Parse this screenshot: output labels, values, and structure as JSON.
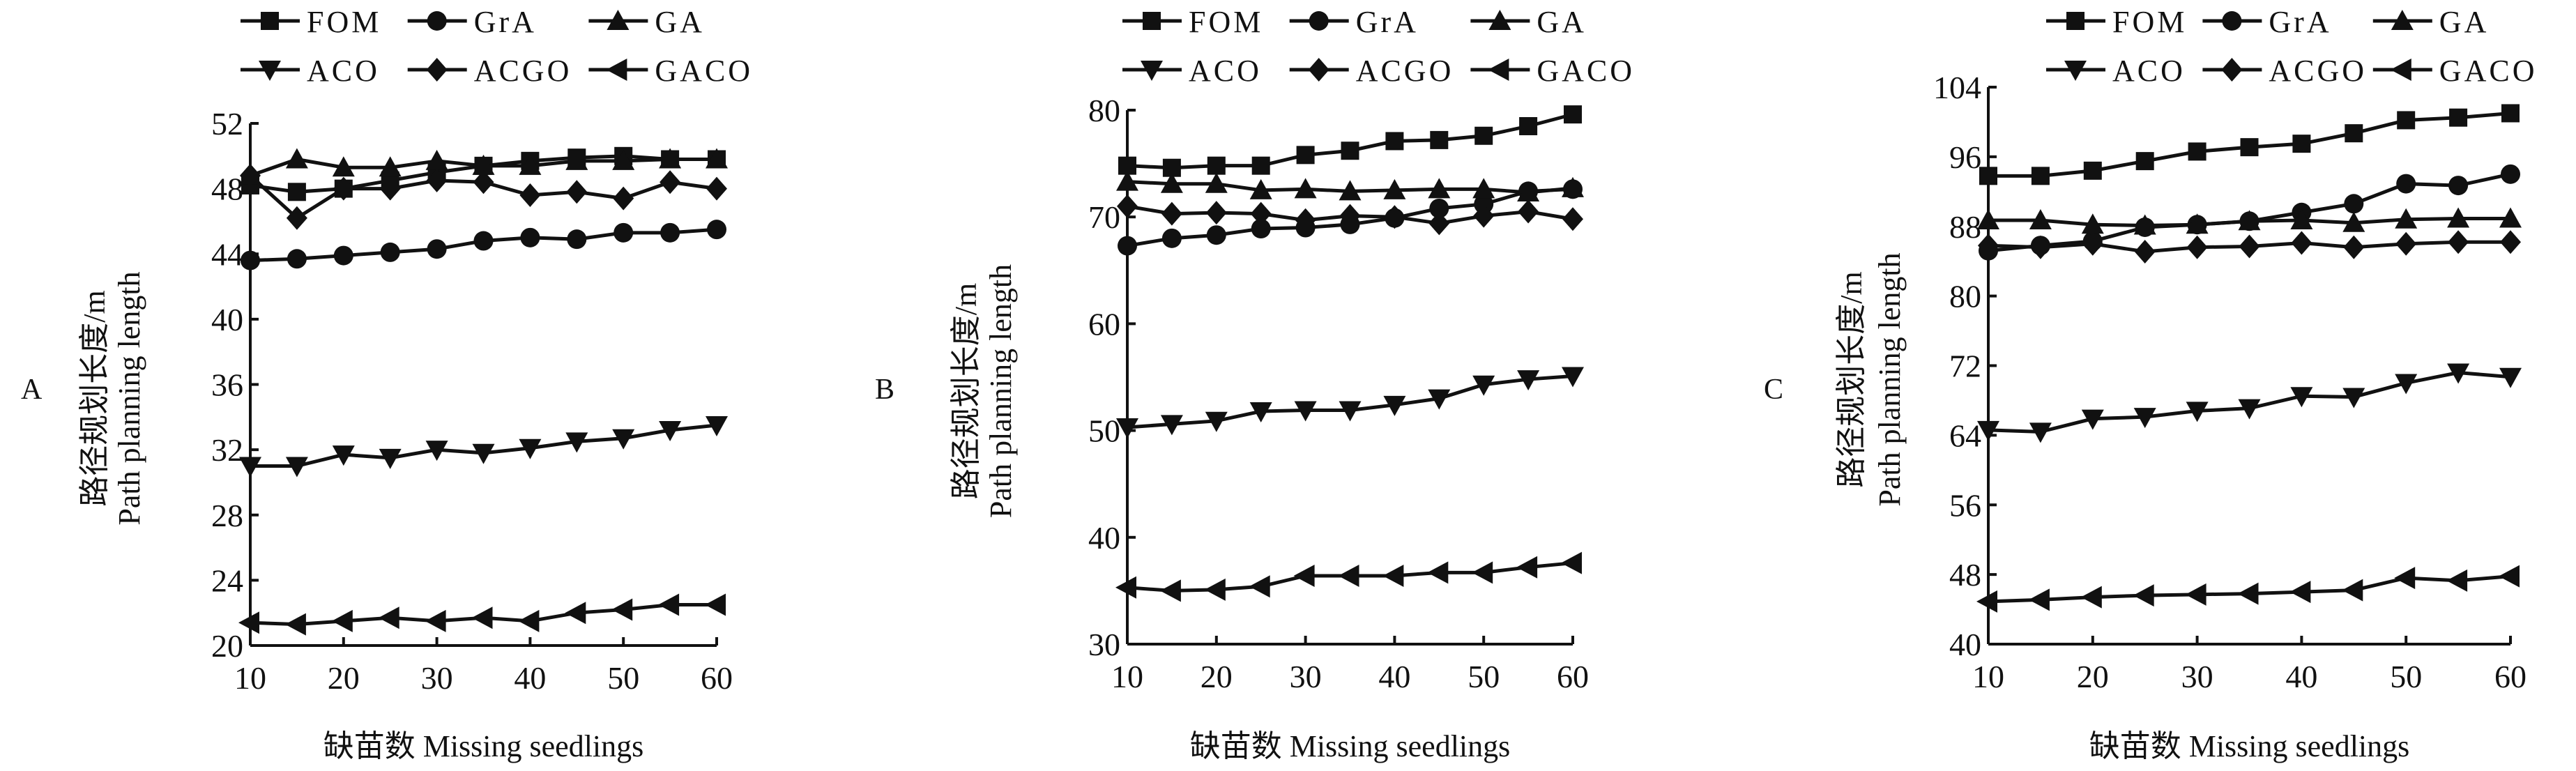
{
  "chart_data": [
    {
      "type": "line",
      "panel_label": "A",
      "xlabel": "缺苗数 Missing seedlings",
      "ylabel_cn": "路径规划长度/m",
      "ylabel_en": "Path planning length",
      "x": [
        10,
        15,
        20,
        25,
        30,
        35,
        40,
        45,
        50,
        55,
        60
      ],
      "xticks": [
        10,
        20,
        30,
        40,
        50,
        60
      ],
      "ylim": [
        20,
        52
      ],
      "yticks": [
        20,
        24,
        28,
        32,
        36,
        40,
        44,
        48,
        52
      ],
      "legend": [
        "FOM",
        "GrA",
        "GA",
        "ACO",
        "ACGO",
        "GACO"
      ],
      "legend_placement": "top",
      "series": [
        {
          "name": "FOM",
          "marker": "square",
          "values": [
            48.2,
            47.8,
            48.0,
            48.5,
            49.0,
            49.4,
            49.7,
            49.9,
            50.0,
            49.8,
            49.8
          ]
        },
        {
          "name": "GrA",
          "marker": "circle",
          "values": [
            43.6,
            43.7,
            43.9,
            44.1,
            44.3,
            44.8,
            45.0,
            44.9,
            45.3,
            45.3,
            45.5
          ]
        },
        {
          "name": "GA",
          "marker": "triangle-up",
          "values": [
            48.8,
            49.8,
            49.3,
            49.3,
            49.7,
            49.4,
            49.4,
            49.7,
            49.7,
            49.8,
            49.8
          ]
        },
        {
          "name": "ACO",
          "marker": "triangle-down",
          "values": [
            31.0,
            31.0,
            31.7,
            31.5,
            32.0,
            31.8,
            32.1,
            32.5,
            32.7,
            33.2,
            33.5
          ]
        },
        {
          "name": "ACGO",
          "marker": "diamond",
          "values": [
            48.8,
            46.2,
            48.0,
            48.0,
            48.5,
            48.4,
            47.6,
            47.8,
            47.4,
            48.4,
            48.0
          ]
        },
        {
          "name": "GACO",
          "marker": "triangle-left",
          "values": [
            21.4,
            21.3,
            21.5,
            21.7,
            21.5,
            21.7,
            21.5,
            22.0,
            22.2,
            22.5,
            22.5
          ]
        }
      ]
    },
    {
      "type": "line",
      "panel_label": "B",
      "xlabel": "缺苗数 Missing seedlings",
      "ylabel_cn": "路径规划长度/m",
      "ylabel_en": "Path planning length",
      "x": [
        10,
        15,
        20,
        25,
        30,
        35,
        40,
        45,
        50,
        55,
        60
      ],
      "xticks": [
        10,
        20,
        30,
        40,
        50,
        60
      ],
      "ylim": [
        30,
        80
      ],
      "yticks": [
        30,
        40,
        50,
        60,
        70,
        80
      ],
      "legend": [
        "FOM",
        "GrA",
        "GA",
        "ACO",
        "ACGO",
        "GACO"
      ],
      "legend_placement": "top",
      "series": [
        {
          "name": "FOM",
          "marker": "square",
          "values": [
            74.8,
            74.6,
            74.8,
            74.8,
            75.8,
            76.2,
            77.1,
            77.2,
            77.6,
            78.5,
            79.6
          ]
        },
        {
          "name": "GrA",
          "marker": "circle",
          "values": [
            67.3,
            68.0,
            68.3,
            68.9,
            69.0,
            69.3,
            69.9,
            70.8,
            71.2,
            72.4,
            72.6
          ]
        },
        {
          "name": "GA",
          "marker": "triangle-up",
          "values": [
            73.3,
            73.1,
            73.1,
            72.5,
            72.6,
            72.4,
            72.5,
            72.6,
            72.6,
            72.3,
            72.7
          ]
        },
        {
          "name": "ACO",
          "marker": "triangle-down",
          "values": [
            50.3,
            50.6,
            50.9,
            51.8,
            51.9,
            51.9,
            52.4,
            53.0,
            54.3,
            54.8,
            55.1
          ]
        },
        {
          "name": "ACGO",
          "marker": "diamond",
          "values": [
            71.0,
            70.3,
            70.4,
            70.3,
            69.7,
            70.1,
            70.0,
            69.4,
            70.1,
            70.5,
            69.8
          ]
        },
        {
          "name": "GACO",
          "marker": "triangle-left",
          "values": [
            35.3,
            35.0,
            35.1,
            35.4,
            36.4,
            36.4,
            36.4,
            36.7,
            36.7,
            37.2,
            37.6
          ]
        }
      ]
    },
    {
      "type": "line",
      "panel_label": "C",
      "xlabel": "缺苗数 Missing seedlings",
      "ylabel_cn": "路径规划长度/m",
      "ylabel_en": "Path planning length",
      "x": [
        10,
        15,
        20,
        25,
        30,
        35,
        40,
        45,
        50,
        55,
        60
      ],
      "xticks": [
        10,
        20,
        30,
        40,
        50,
        60
      ],
      "ylim": [
        40,
        104
      ],
      "yticks": [
        40,
        48,
        56,
        64,
        72,
        80,
        88,
        96,
        104
      ],
      "legend": [
        "FOM",
        "GrA",
        "GA",
        "ACO",
        "ACGO",
        "GACO"
      ],
      "legend_placement": "top",
      "series": [
        {
          "name": "FOM",
          "marker": "square",
          "values": [
            93.8,
            93.8,
            94.4,
            95.5,
            96.6,
            97.1,
            97.5,
            98.7,
            100.2,
            100.5,
            101.0
          ]
        },
        {
          "name": "GrA",
          "marker": "circle",
          "values": [
            85.2,
            85.8,
            86.3,
            87.9,
            88.2,
            88.6,
            89.6,
            90.6,
            92.9,
            92.7,
            94.0
          ]
        },
        {
          "name": "GA",
          "marker": "triangle-up",
          "values": [
            88.7,
            88.7,
            88.2,
            88.1,
            88.2,
            88.6,
            88.7,
            88.4,
            88.8,
            88.9,
            88.9
          ]
        },
        {
          "name": "ACO",
          "marker": "triangle-down",
          "values": [
            64.6,
            64.4,
            65.9,
            66.1,
            66.8,
            67.1,
            68.5,
            68.4,
            70.0,
            71.2,
            70.7
          ]
        },
        {
          "name": "ACGO",
          "marker": "diamond",
          "values": [
            85.8,
            85.6,
            86.0,
            85.1,
            85.6,
            85.7,
            86.1,
            85.6,
            86.0,
            86.2,
            86.2
          ]
        },
        {
          "name": "GACO",
          "marker": "triangle-left",
          "values": [
            44.9,
            45.1,
            45.4,
            45.6,
            45.7,
            45.8,
            46.0,
            46.2,
            47.6,
            47.3,
            47.8
          ]
        }
      ]
    }
  ]
}
